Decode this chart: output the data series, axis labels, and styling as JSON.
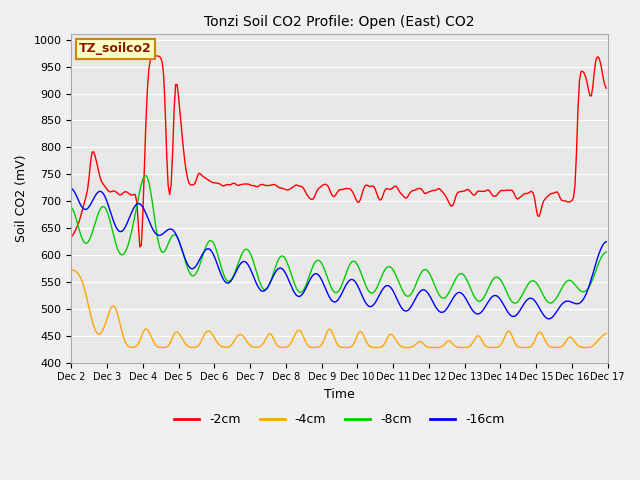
{
  "title": "Tonzi Soil CO2 Profile: Open (East) CO2",
  "xlabel": "Time",
  "ylabel": "Soil CO2 (mV)",
  "ylim": [
    400,
    1010
  ],
  "xlim": [
    0,
    360
  ],
  "annotation": "TZ_soilco2",
  "line_colors": [
    "#ff0000",
    "#ffa500",
    "#00cc00",
    "#0000ff"
  ],
  "line_labels": [
    "-2cm",
    "-4cm",
    "-8cm",
    "-16cm"
  ],
  "line_width": 1.0,
  "bg_color": "#e8e8e8",
  "fig_color": "#f0f0f0",
  "xtick_labels": [
    "Dec 2",
    "Dec 3",
    "Dec 4",
    "Dec 5",
    "Dec 6",
    "Dec 7",
    "Dec 8",
    "Dec 9",
    "Dec 10",
    "Dec 11",
    "Dec 12",
    "Dec 13",
    "Dec 14",
    "Dec 15",
    "Dec 16",
    "Dec 17"
  ],
  "xtick_positions": [
    0,
    24,
    48,
    72,
    96,
    120,
    144,
    168,
    192,
    216,
    240,
    264,
    288,
    312,
    336,
    360
  ]
}
